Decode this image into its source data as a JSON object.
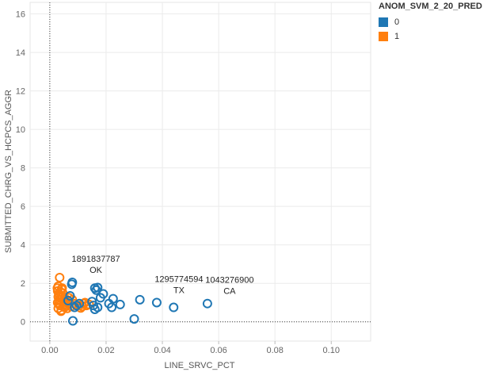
{
  "chart_data": {
    "type": "scatter",
    "xlabel": "LINE_SRVC_PCT",
    "ylabel": "SUBMITTED_CHRG_VS_HCPCS_AGGR",
    "xlim": [
      -0.007,
      0.114
    ],
    "ylim": [
      -1.0,
      16.6
    ],
    "x_ticks": [
      0.0,
      0.02,
      0.04,
      0.06,
      0.08,
      0.1
    ],
    "x_tick_labels": [
      "0.00",
      "0.02",
      "0.04",
      "0.06",
      "0.08",
      "0.10"
    ],
    "y_ticks": [
      0,
      2,
      4,
      6,
      8,
      10,
      12,
      14,
      16
    ],
    "y_tick_labels": [
      "0",
      "2",
      "4",
      "6",
      "8",
      "10",
      "12",
      "14",
      "16"
    ],
    "grid": true,
    "reference_lines": {
      "x": 0,
      "y": 0
    },
    "marker": "open-circle",
    "series": [
      {
        "name": "0",
        "color": "#1f77b4",
        "points": [
          [
            0.0078,
            1.95
          ],
          [
            0.008,
            2.05
          ],
          [
            0.0082,
            0.05
          ],
          [
            0.016,
            1.75
          ],
          [
            0.0165,
            1.65
          ],
          [
            0.017,
            1.78
          ],
          [
            0.015,
            1.05
          ],
          [
            0.0155,
            0.85
          ],
          [
            0.016,
            0.65
          ],
          [
            0.017,
            0.75
          ],
          [
            0.018,
            1.25
          ],
          [
            0.019,
            1.45
          ],
          [
            0.021,
            0.95
          ],
          [
            0.022,
            0.75
          ],
          [
            0.0225,
            1.2
          ],
          [
            0.025,
            0.9
          ],
          [
            0.03,
            0.15
          ],
          [
            0.032,
            1.15
          ],
          [
            0.038,
            1.0
          ],
          [
            0.044,
            0.75
          ],
          [
            0.056,
            0.95
          ],
          [
            0.0095,
            0.85
          ],
          [
            0.0088,
            0.75
          ],
          [
            0.0065,
            1.1
          ],
          [
            0.0072,
            1.35
          ],
          [
            0.0105,
            0.95
          ]
        ]
      },
      {
        "name": "1",
        "color": "#ff7f0e",
        "points": [
          [
            0.0035,
            2.3
          ],
          [
            0.003,
            1.85
          ],
          [
            0.0028,
            1.6
          ],
          [
            0.0032,
            1.45
          ],
          [
            0.003,
            1.3
          ],
          [
            0.0034,
            1.15
          ],
          [
            0.0028,
            1.0
          ],
          [
            0.0036,
            0.85
          ],
          [
            0.003,
            0.7
          ],
          [
            0.004,
            0.55
          ],
          [
            0.0042,
            1.7
          ],
          [
            0.0045,
            1.35
          ],
          [
            0.0048,
            1.1
          ],
          [
            0.005,
            0.9
          ],
          [
            0.0052,
            0.75
          ],
          [
            0.0055,
            1.2
          ],
          [
            0.0058,
            1.05
          ],
          [
            0.006,
            0.85
          ],
          [
            0.0062,
            0.7
          ],
          [
            0.0065,
            0.95
          ],
          [
            0.0068,
            1.25
          ],
          [
            0.007,
            1.05
          ],
          [
            0.0075,
            0.8
          ],
          [
            0.008,
            1.15
          ],
          [
            0.0085,
            0.95
          ],
          [
            0.0095,
            0.85
          ],
          [
            0.0105,
            0.85
          ],
          [
            0.011,
            0.72
          ],
          [
            0.0115,
            0.8
          ],
          [
            0.012,
            0.95
          ],
          [
            0.0125,
            1.0
          ],
          [
            0.013,
            0.85
          ],
          [
            0.014,
            0.9
          ],
          [
            0.0038,
            1.55
          ],
          [
            0.0044,
            1.75
          ],
          [
            0.0046,
            1.5
          ],
          [
            0.0033,
            0.95
          ],
          [
            0.0039,
            1.25
          ],
          [
            0.0027,
            1.75
          ],
          [
            0.0041,
            0.6
          ]
        ]
      }
    ],
    "annotations": [
      {
        "id": "1891837787",
        "state": "OK",
        "x": 0.0085,
        "y": 2.05
      },
      {
        "id": "1295774594",
        "state": "TX",
        "x": 0.038,
        "y": 1.0
      },
      {
        "id": "1043276900",
        "state": "CA",
        "x": 0.056,
        "y": 0.95
      }
    ]
  },
  "legend": {
    "title": "ANOM_SVM_2_20_PRED",
    "items": [
      {
        "label": "0",
        "color": "#1f77b4"
      },
      {
        "label": "1",
        "color": "#ff7f0e"
      }
    ]
  }
}
